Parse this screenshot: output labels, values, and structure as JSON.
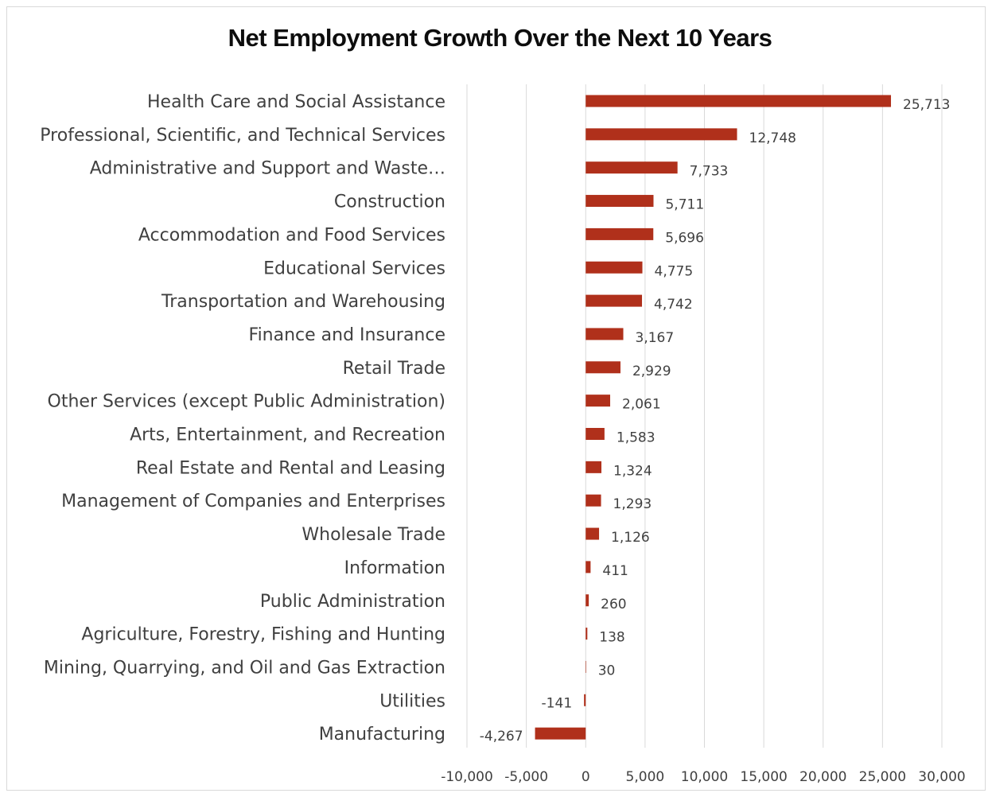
{
  "chart_data": {
    "type": "bar",
    "orientation": "horizontal",
    "title": "Net Employment Growth Over the Next 10 Years",
    "categories": [
      "Health Care and Social Assistance",
      "Professional, Scientific, and Technical Services",
      "Administrative and Support and Waste…",
      "Construction",
      "Accommodation and Food Services",
      "Educational Services",
      "Transportation and Warehousing",
      "Finance and Insurance",
      "Retail Trade",
      "Other Services (except Public Administration)",
      "Arts, Entertainment, and Recreation",
      "Real Estate and Rental and Leasing",
      "Management of Companies and Enterprises",
      "Wholesale Trade",
      "Information",
      "Public Administration",
      "Agriculture, Forestry, Fishing and Hunting",
      "Mining, Quarrying, and Oil and Gas Extraction",
      "Utilities",
      "Manufacturing"
    ],
    "values": [
      25713,
      12748,
      7733,
      5711,
      5696,
      4775,
      4742,
      3167,
      2929,
      2061,
      1583,
      1324,
      1293,
      1126,
      411,
      260,
      138,
      30,
      -141,
      -4267
    ],
    "data_labels": [
      "25,713",
      "12,748",
      "7,733",
      "5,711",
      "5,696",
      "4,775",
      "4,742",
      "3,167",
      "2,929",
      "2,061",
      "1,583",
      "1,324",
      "1,293",
      "1,126",
      "411",
      "260",
      "138",
      "30",
      "-141",
      "-4,267"
    ],
    "xlim": [
      -10000,
      30000
    ],
    "xticks": [
      -10000,
      -5000,
      0,
      5000,
      10000,
      15000,
      20000,
      25000,
      30000
    ],
    "xtick_labels": [
      "-10,000",
      "-5,000",
      "0",
      "5,000",
      "10,000",
      "15,000",
      "20,000",
      "25,000",
      "30,000"
    ],
    "xlabel": "",
    "ylabel": "",
    "grid": "vertical",
    "legend": "none",
    "bar_color": "#b0301b",
    "grid_color": "#d9d9d9"
  }
}
